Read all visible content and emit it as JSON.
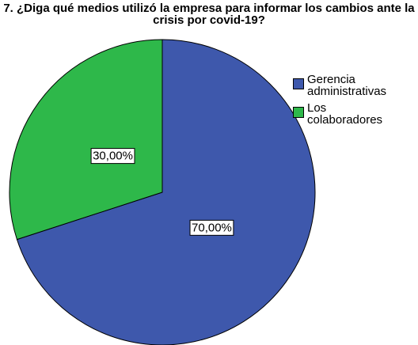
{
  "chart_data": {
    "type": "pie",
    "title": "7. ¿Diga qué medios utilizó la empresa para informar los cambios ante la crisis por covid-19?",
    "categories": [
      "Gerencia administrativas",
      "Los colaboradores"
    ],
    "values": [
      70,
      30
    ],
    "value_labels": [
      "70,00%",
      "30,00%"
    ],
    "colors": [
      "#3e58ac",
      "#2eb84a"
    ],
    "legend": "right"
  }
}
